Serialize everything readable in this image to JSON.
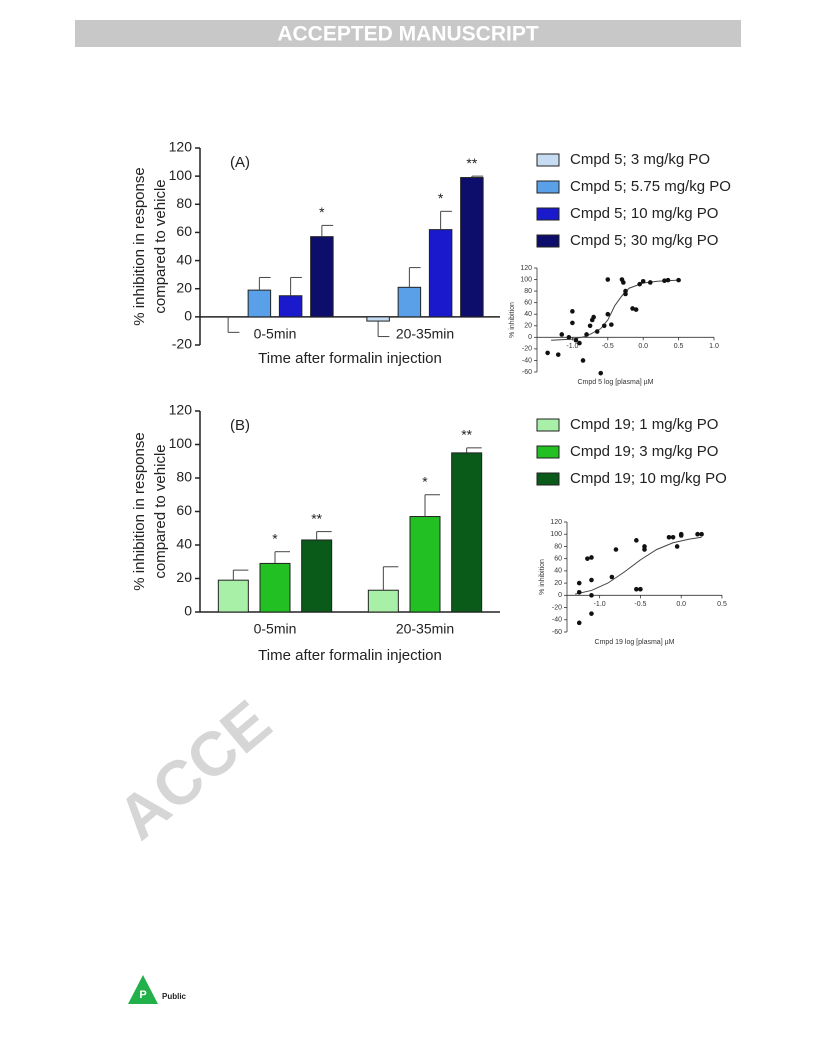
{
  "header": {
    "title": "ACCEPTED MANUSCRIPT"
  },
  "watermark": "ACCE",
  "footer": {
    "logo": "P",
    "label": "Public"
  },
  "chart_data": [
    {
      "type": "bar",
      "panel": "(A)",
      "ylabel": [
        "% inhibition in response",
        "compared to vehicle"
      ],
      "xlabel": "Time after formalin injection",
      "categories": [
        "0-5min",
        "20-35min"
      ],
      "series": [
        {
          "name": "Cmpd 5; 3 mg/kg PO",
          "color": "#c6dcf2",
          "values": [
            0,
            -3
          ],
          "errors": [
            11,
            11
          ]
        },
        {
          "name": "Cmpd 5; 5.75 mg/kg PO",
          "color": "#5aa0e8",
          "values": [
            19,
            21
          ],
          "errors": [
            9,
            14
          ]
        },
        {
          "name": "Cmpd 5; 10 mg/kg PO",
          "color": "#1a1acc",
          "values": [
            15,
            62
          ],
          "errors": [
            13,
            13
          ]
        },
        {
          "name": "Cmpd 5; 30 mg/kg PO",
          "color": "#0d0d6b",
          "values": [
            57,
            99
          ],
          "errors": [
            8,
            1
          ]
        }
      ],
      "annotations": [
        {
          "text": "*",
          "series": "Cmpd 5; 30 mg/kg PO",
          "category": "0-5min"
        },
        {
          "text": "*",
          "series": "Cmpd 5; 10 mg/kg PO",
          "category": "20-35min"
        },
        {
          "text": "**",
          "series": "Cmpd 5; 30 mg/kg PO",
          "category": "20-35min"
        }
      ],
      "ylim": [
        -20,
        120
      ],
      "yticks": [
        -20,
        0,
        20,
        40,
        60,
        80,
        100,
        120
      ],
      "inset": {
        "type": "scatter",
        "xlabel": "Cmpd 5 log [plasma] µM",
        "ylabel": "% inhibition",
        "x": [
          -1.35,
          -1.2,
          -1.15,
          -1.05,
          -1.0,
          -1.0,
          -0.95,
          -0.9,
          -0.85,
          -0.8,
          -0.75,
          -0.72,
          -0.7,
          -0.65,
          -0.6,
          -0.55,
          -0.5,
          -0.5,
          -0.45,
          -0.3,
          -0.28,
          -0.25,
          -0.25,
          -0.15,
          -0.1,
          -0.05,
          0.0,
          0.1,
          0.3,
          0.35,
          0.5
        ],
        "y": [
          -27,
          -30,
          5,
          0,
          45,
          25,
          -5,
          -10,
          -40,
          5,
          20,
          30,
          35,
          10,
          -62,
          20,
          100,
          40,
          22,
          100,
          95,
          80,
          75,
          50,
          48,
          92,
          97,
          95,
          98,
          99,
          99
        ],
        "fit": {
          "x": [
            -1.3,
            -1.0,
            -0.8,
            -0.6,
            -0.5,
            -0.4,
            -0.3,
            -0.2,
            0.0,
            0.2,
            0.5
          ],
          "y": [
            -5,
            -3,
            2,
            15,
            30,
            55,
            72,
            85,
            94,
            97,
            99
          ]
        },
        "xlim": [
          -1.5,
          1.0
        ],
        "xticks": [
          {
            "value": -1,
            "label": "-1.0"
          },
          -0.5,
          {
            "value": 0,
            "label": "0.0"
          },
          0.5,
          {
            "value": 1,
            "label": "1.0"
          }
        ],
        "ylim": [
          -60,
          120
        ],
        "yticks": [
          -60,
          -40,
          -20,
          0,
          20,
          40,
          60,
          80,
          100,
          120
        ]
      }
    },
    {
      "type": "bar",
      "panel": "(B)",
      "ylabel": [
        "% inhibition in response",
        "compared to vehicle"
      ],
      "xlabel": "Time after formalin injection",
      "categories": [
        "0-5min",
        "20-35min"
      ],
      "series": [
        {
          "name": "Cmpd 19; 1 mg/kg PO",
          "color": "#a8f0a8",
          "values": [
            19,
            13
          ],
          "errors": [
            6,
            14
          ]
        },
        {
          "name": "Cmpd 19; 3 mg/kg PO",
          "color": "#22c022",
          "values": [
            29,
            57
          ],
          "errors": [
            7,
            13
          ]
        },
        {
          "name": "Cmpd 19; 10 mg/kg PO",
          "color": "#0a5a1a",
          "values": [
            43,
            95
          ],
          "errors": [
            5,
            3
          ]
        }
      ],
      "annotations": [
        {
          "text": "*",
          "series": "Cmpd 19; 3 mg/kg PO",
          "category": "0-5min"
        },
        {
          "text": "**",
          "series": "Cmpd 19; 10 mg/kg PO",
          "category": "0-5min"
        },
        {
          "text": "*",
          "series": "Cmpd 19; 3 mg/kg PO",
          "category": "20-35min"
        },
        {
          "text": "**",
          "series": "Cmpd 19; 10 mg/kg PO",
          "category": "20-35min"
        }
      ],
      "ylim": [
        0,
        120
      ],
      "yticks": [
        0,
        20,
        40,
        60,
        80,
        100,
        120
      ],
      "inset": {
        "type": "scatter",
        "xlabel": "Cmpd 19 log [plasma] µM",
        "ylabel": "% inhibition",
        "x": [
          -1.25,
          -1.25,
          -1.25,
          -1.15,
          -1.1,
          -1.1,
          -1.1,
          -1.1,
          -0.8,
          -0.85,
          -0.55,
          -0.5,
          -0.55,
          -0.45,
          -0.45,
          -0.15,
          -0.1,
          -0.05,
          0.0,
          0.0,
          0.2,
          0.25
        ],
        "y": [
          5,
          -45,
          20,
          60,
          62,
          25,
          -30,
          0,
          75,
          30,
          10,
          10,
          90,
          80,
          75,
          95,
          95,
          80,
          100,
          98,
          100,
          100
        ],
        "fit": {
          "x": [
            -1.3,
            -1.1,
            -0.9,
            -0.7,
            -0.5,
            -0.3,
            -0.1,
            0.1,
            0.25
          ],
          "y": [
            2,
            8,
            20,
            38,
            58,
            75,
            86,
            92,
            95
          ]
        },
        "xlim": [
          -1.4,
          0.5
        ],
        "xticks": [
          {
            "value": -1,
            "label": "-1.0"
          },
          -0.5,
          {
            "value": 0,
            "label": "0.0"
          },
          0.5
        ],
        "ylim": [
          -60,
          120
        ],
        "yticks": [
          -60,
          -40,
          -20,
          0,
          20,
          40,
          60,
          80,
          100,
          120
        ]
      }
    }
  ]
}
